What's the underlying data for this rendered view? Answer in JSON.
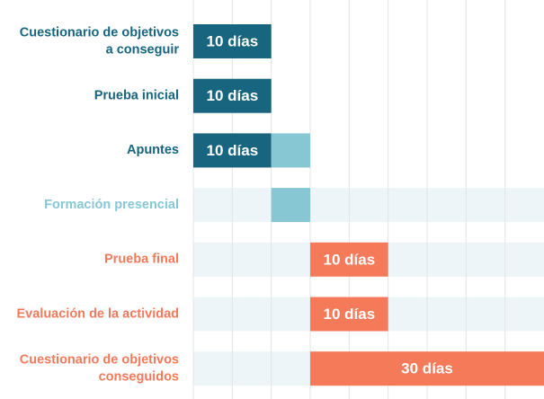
{
  "chart_data": {
    "type": "gantt",
    "xlim": [
      0,
      45
    ],
    "xticks": [
      0,
      5,
      10,
      15,
      20,
      25,
      30,
      35,
      40
    ],
    "grid": true,
    "tasks": [
      {
        "name": [
          "Cuestionario de objetivos",
          "a conseguir"
        ],
        "color": "#17657f",
        "segments": [
          {
            "start": 0,
            "duration": 10,
            "color": "#17657f",
            "label": "10 días"
          }
        ]
      },
      {
        "name": [
          "Prueba inicial"
        ],
        "color": "#17657f",
        "segments": [
          {
            "start": 0,
            "duration": 10,
            "color": "#17657f",
            "label": "10 días"
          }
        ]
      },
      {
        "name": [
          "Apuntes"
        ],
        "color": "#17657f",
        "segments": [
          {
            "start": 0,
            "duration": 10,
            "color": "#17657f",
            "label": "10 días"
          },
          {
            "start": 10,
            "duration": 5,
            "color": "#86c7d3"
          }
        ]
      },
      {
        "name": [
          "Formación presencial"
        ],
        "color": "#86c7d3",
        "segments": [
          {
            "start": 10,
            "duration": 5,
            "color": "#86c7d3"
          }
        ]
      },
      {
        "name": [
          "Prueba final"
        ],
        "color": "#f47a5a",
        "segments": [
          {
            "start": 15,
            "duration": 10,
            "color": "#f47a5a",
            "label": "10 días"
          }
        ]
      },
      {
        "name": [
          "Evaluación de la actividad"
        ],
        "color": "#f47a5a",
        "segments": [
          {
            "start": 15,
            "duration": 10,
            "color": "#f47a5a",
            "label": "10 días"
          }
        ]
      },
      {
        "name": [
          "Cuestionario de objetivos",
          "conseguidos"
        ],
        "color": "#f47a5a",
        "segments": [
          {
            "start": 15,
            "duration": 30,
            "color": "#f47a5a",
            "label": "30 días"
          }
        ]
      }
    ]
  }
}
